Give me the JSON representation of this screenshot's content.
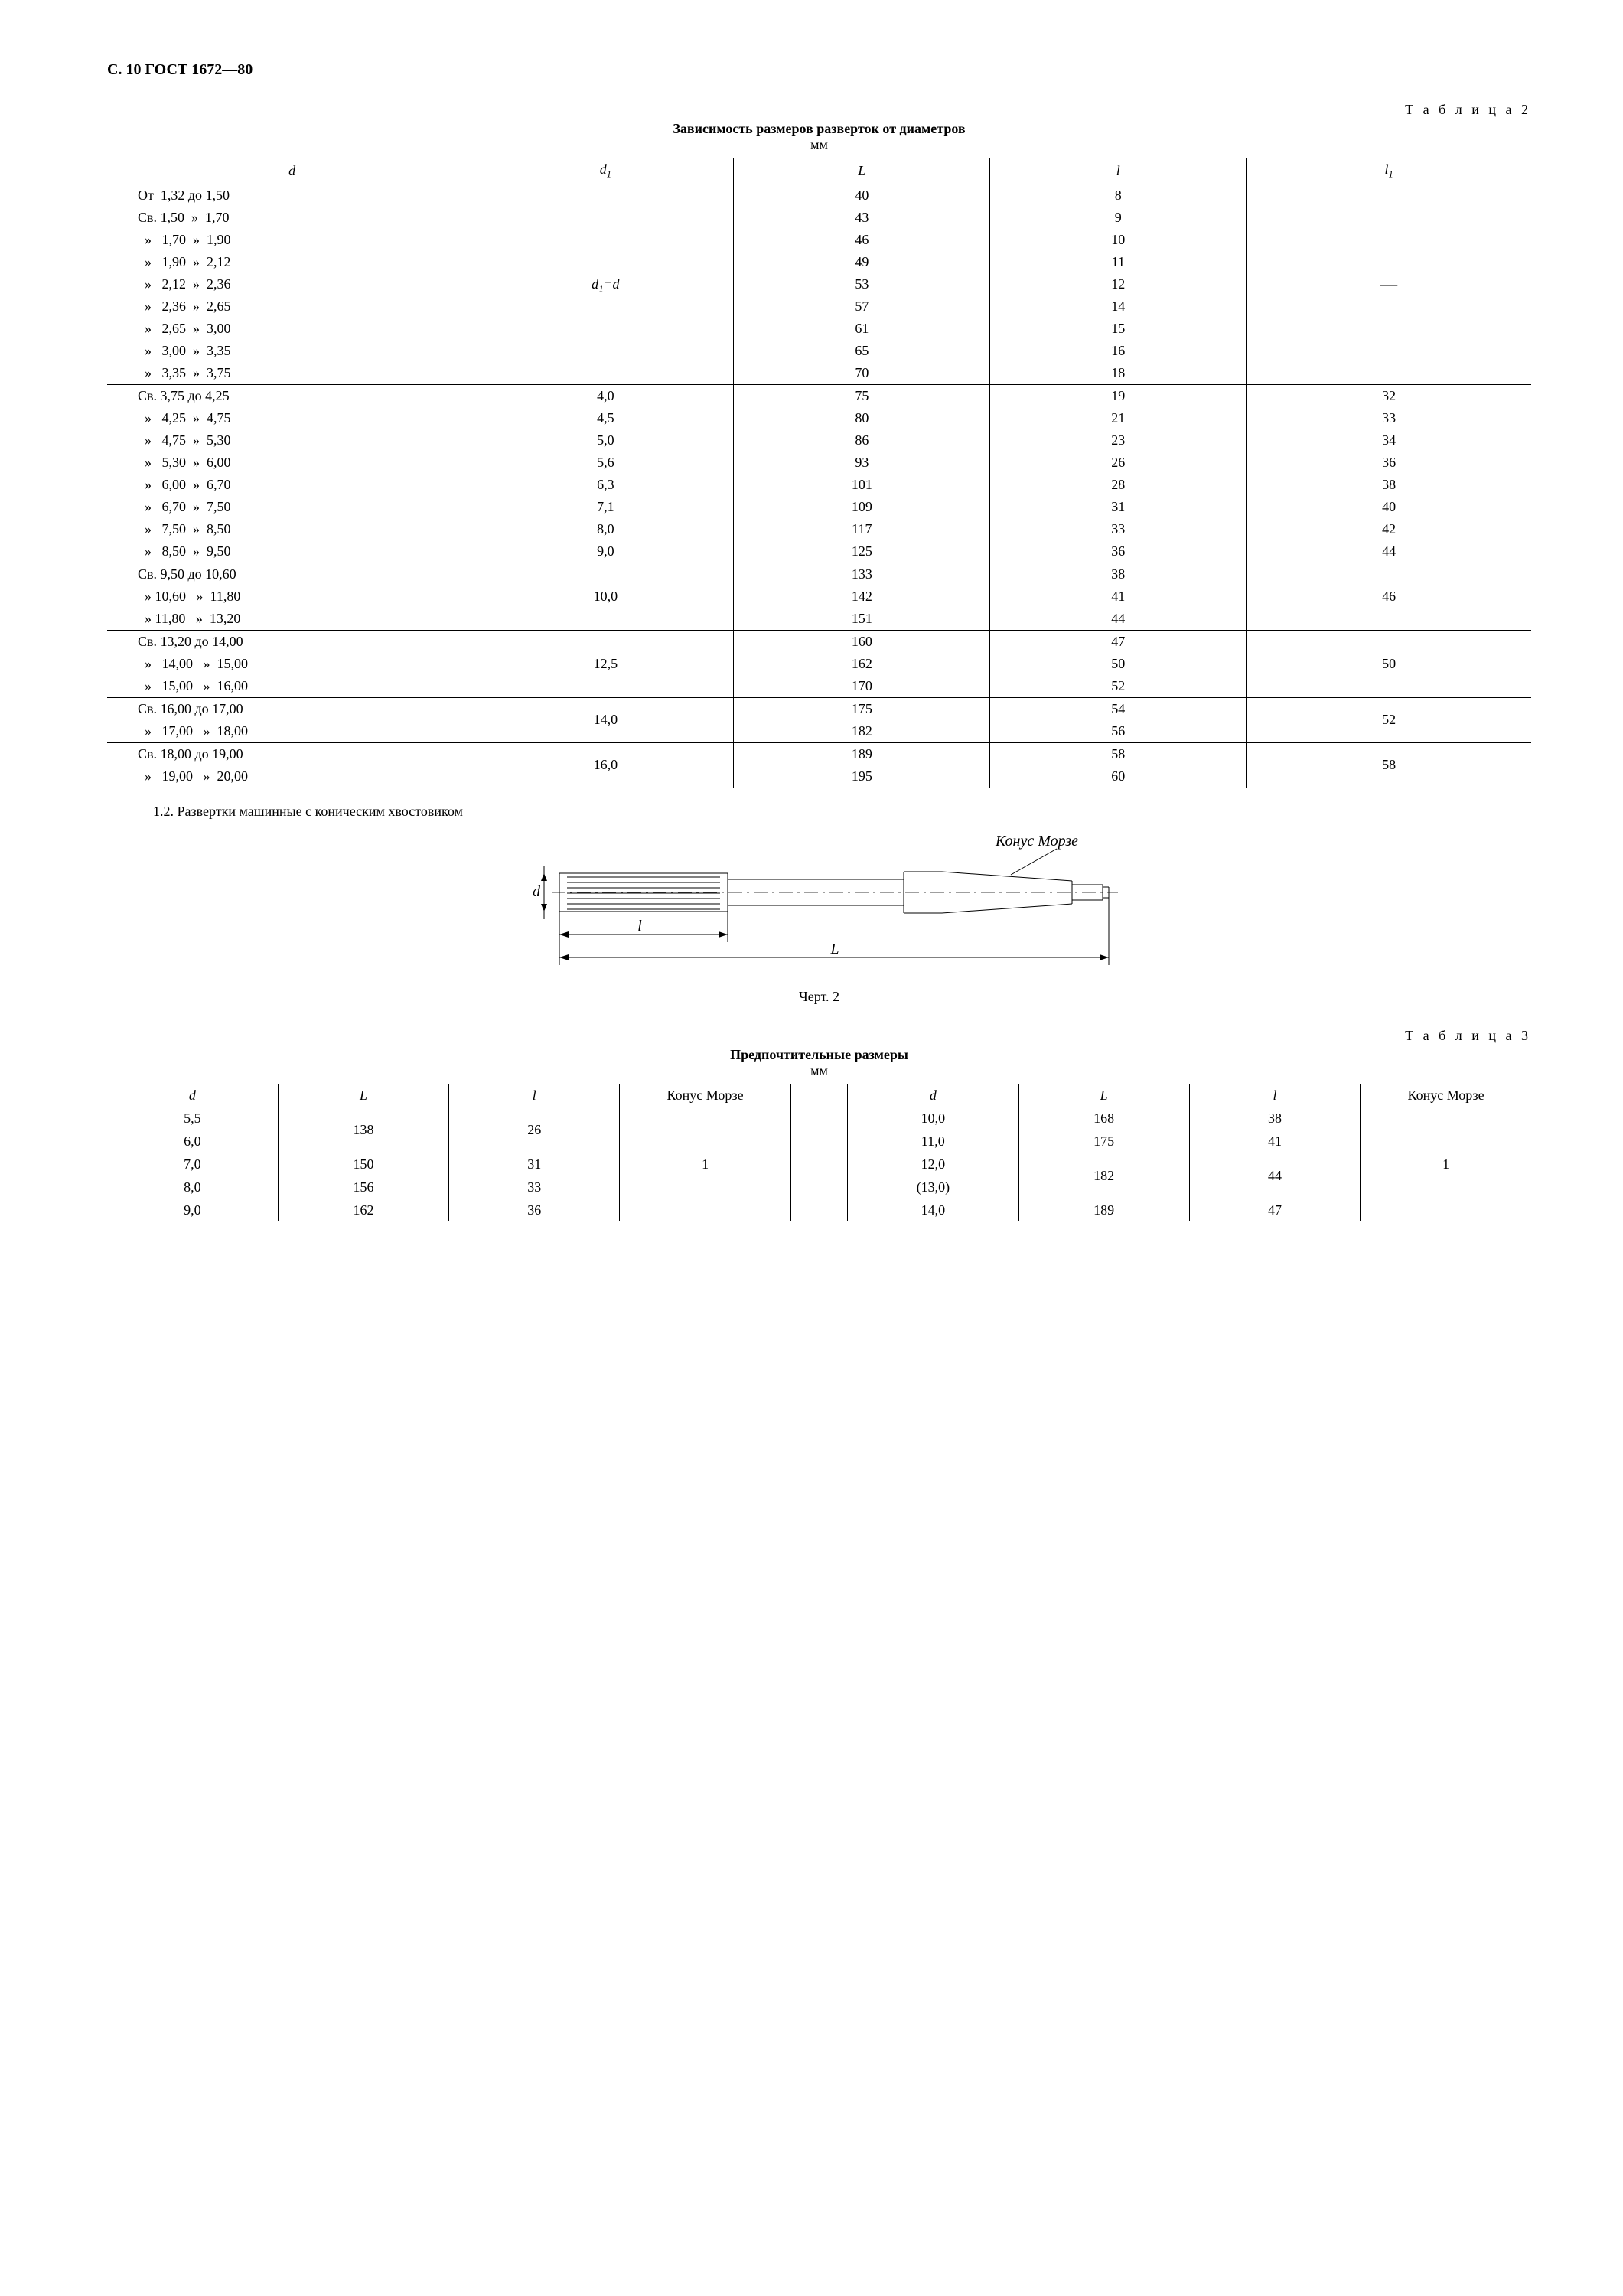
{
  "page_header": "С. 10 ГОСТ 1672—80",
  "table2": {
    "label": "Т а б л и ц а  2",
    "title": "Зависимость размеров разверток от диаметров",
    "unit": "мм",
    "headers": {
      "d": "d",
      "d1": "d",
      "d1sub": "1",
      "L": "L",
      "l": "l",
      "l1": "l",
      "l1sub": "1"
    },
    "d1_eq_d": "d₁=d",
    "dash": "—",
    "groups": [
      {
        "d1": null,
        "l1": null,
        "rows": [
          {
            "d": "От  1,32 до 1,50",
            "L": "40",
            "l": "8"
          },
          {
            "d": "Св. 1,50  »  1,70",
            "L": "43",
            "l": "9"
          },
          {
            "d": "  »   1,70  »  1,90",
            "L": "46",
            "l": "10"
          },
          {
            "d": "  »   1,90  »  2,12",
            "L": "49",
            "l": "11"
          },
          {
            "d": "  »   2,12  »  2,36",
            "L": "53",
            "l": "12"
          },
          {
            "d": "  »   2,36  »  2,65",
            "L": "57",
            "l": "14"
          },
          {
            "d": "  »   2,65  »  3,00",
            "L": "61",
            "l": "15"
          },
          {
            "d": "  »   3,00  »  3,35",
            "L": "65",
            "l": "16"
          },
          {
            "d": "  »   3,35  »  3,75",
            "L": "70",
            "l": "18"
          }
        ]
      },
      {
        "rows": [
          {
            "d": "Св. 3,75 до 4,25",
            "d1": "4,0",
            "L": "75",
            "l": "19",
            "l1": "32"
          },
          {
            "d": "  »   4,25  »  4,75",
            "d1": "4,5",
            "L": "80",
            "l": "21",
            "l1": "33"
          },
          {
            "d": "  »   4,75  »  5,30",
            "d1": "5,0",
            "L": "86",
            "l": "23",
            "l1": "34"
          },
          {
            "d": "  »   5,30  »  6,00",
            "d1": "5,6",
            "L": "93",
            "l": "26",
            "l1": "36"
          },
          {
            "d": "  »   6,00  »  6,70",
            "d1": "6,3",
            "L": "101",
            "l": "28",
            "l1": "38"
          },
          {
            "d": "  »   6,70  »  7,50",
            "d1": "7,1",
            "L": "109",
            "l": "31",
            "l1": "40"
          },
          {
            "d": "  »   7,50  »  8,50",
            "d1": "8,0",
            "L": "117",
            "l": "33",
            "l1": "42"
          },
          {
            "d": "  »   8,50  »  9,50",
            "d1": "9,0",
            "L": "125",
            "l": "36",
            "l1": "44"
          }
        ]
      },
      {
        "d1": "10,0",
        "l1": "46",
        "rows": [
          {
            "d": "Св. 9,50 до 10,60",
            "L": "133",
            "l": "38"
          },
          {
            "d": "  » 10,60   »  11,80",
            "L": "142",
            "l": "41"
          },
          {
            "d": "  » 11,80   »  13,20",
            "L": "151",
            "l": "44"
          }
        ]
      },
      {
        "d1": "12,5",
        "l1": "50",
        "rows": [
          {
            "d": "Св. 13,20 до 14,00",
            "L": "160",
            "l": "47"
          },
          {
            "d": "  »   14,00   »  15,00",
            "L": "162",
            "l": "50"
          },
          {
            "d": "  »   15,00   »  16,00",
            "L": "170",
            "l": "52"
          }
        ]
      },
      {
        "d1": "14,0",
        "l1": "52",
        "rows": [
          {
            "d": "Св. 16,00 до 17,00",
            "L": "175",
            "l": "54"
          },
          {
            "d": "  »   17,00   »  18,00",
            "L": "182",
            "l": "56"
          }
        ]
      },
      {
        "d1": "16,0",
        "l1": "58",
        "rows": [
          {
            "d": "Св. 18,00 до 19,00",
            "L": "189",
            "l": "58"
          },
          {
            "d": "  »   19,00   »  20,00",
            "L": "195",
            "l": "60"
          }
        ]
      }
    ]
  },
  "section_1_2": "1.2. Развертки машинные с коническим хвостовиком",
  "figure2": {
    "caption": "Черт. 2",
    "label_d": "d",
    "label_l": "l",
    "label_L": "L",
    "label_konus": "Конус Морзе"
  },
  "table3": {
    "label": "Т а б л и ц а  3",
    "title": "Предпочтительные размеры",
    "unit": "мм",
    "headers": {
      "d": "d",
      "L": "L",
      "l": "l",
      "konus": "Конус Морзе"
    },
    "konus_val": "1",
    "left": [
      {
        "d": "5,5",
        "L": "138",
        "l": "26"
      },
      {
        "d": "6,0",
        "L": "138",
        "l": "26"
      },
      {
        "d": "7,0",
        "L": "150",
        "l": "31"
      },
      {
        "d": "8,0",
        "L": "156",
        "l": "33"
      },
      {
        "d": "9,0",
        "L": "162",
        "l": "36"
      }
    ],
    "right": [
      {
        "d": "10,0",
        "L": "168",
        "l": "38"
      },
      {
        "d": "11,0",
        "L": "175",
        "l": "41"
      },
      {
        "d": "12,0",
        "L": "182",
        "l": "44"
      },
      {
        "d": "(13,0)",
        "L": "182",
        "l": "44"
      },
      {
        "d": "14,0",
        "L": "189",
        "l": "47"
      }
    ]
  }
}
